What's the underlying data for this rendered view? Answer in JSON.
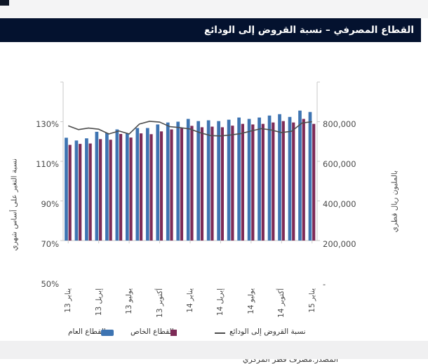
{
  "header": {
    "title": "القطاع المصرفي – نسبة القروض إلى الودائع",
    "bg_color": "#04122f",
    "text_color": "#ffffff"
  },
  "source": {
    "text": "المصدر:مصرف قطر المركزي"
  },
  "legend": {
    "public_label": "القطاع العام",
    "private_label": "القطاع الخاص",
    "line_label": "نسبة القروض إلى الودائع"
  },
  "chart_data": {
    "type": "bar",
    "title": "القطاع المصرفي – نسبة القروض إلى الودائع",
    "x_tick_labels": [
      "يناير 13",
      "إبريل 13",
      "يوليو 13",
      "أكتوبر 13",
      "يناير 14",
      "إبريل 14",
      "يوليو 14",
      "أكتوبر 14",
      "يناير 15"
    ],
    "x_tick_month_index": [
      0,
      3,
      6,
      9,
      12,
      15,
      18,
      21,
      24
    ],
    "n_months": 25,
    "left_axis": {
      "title": "نسبة التغير على أساس شهري",
      "ticks": [
        "130%",
        "110%",
        "90%",
        "70%",
        "50%"
      ],
      "min": 50,
      "max": 130,
      "unit": "%"
    },
    "right_axis": {
      "title": "بالمليون ريال قطري",
      "ticks": [
        "800,000",
        "600,000",
        "400,000",
        "200,000",
        "-"
      ],
      "min": 0,
      "max": 800000
    },
    "grid": false,
    "legend_position": "bottom",
    "series": [
      {
        "name": "القطاع العام",
        "type": "bar",
        "axis": "right",
        "color": "#3e74b2",
        "values": [
          519000,
          505000,
          516000,
          549000,
          543000,
          561000,
          541000,
          568000,
          568000,
          586000,
          596000,
          600000,
          614000,
          603000,
          607000,
          603000,
          610000,
          621000,
          614000,
          621000,
          631000,
          638000,
          624000,
          656000,
          649000
        ]
      },
      {
        "name": "القطاع الخاص",
        "type": "bar",
        "axis": "right",
        "color": "#7d2b57",
        "values": [
          483000,
          488000,
          490000,
          512000,
          509000,
          538000,
          520000,
          541000,
          537000,
          551000,
          561000,
          568000,
          579000,
          572000,
          575000,
          572000,
          580000,
          589000,
          586000,
          589000,
          596000,
          603000,
          596000,
          614000,
          589000
        ]
      },
      {
        "name": "نسبة القروض إلى الودائع",
        "type": "line",
        "axis": "left",
        "color": "#4d4d4d",
        "values": [
          107.9,
          106.0,
          106.8,
          106.2,
          103.8,
          105.3,
          103.8,
          108.8,
          110.2,
          109.8,
          107.5,
          107.0,
          106.3,
          104.4,
          103.0,
          102.8,
          103.3,
          104.0,
          105.3,
          106.5,
          105.8,
          104.5,
          105.2,
          109.3,
          110.0
        ]
      }
    ],
    "axis_line_color": "#c9c9c9"
  }
}
